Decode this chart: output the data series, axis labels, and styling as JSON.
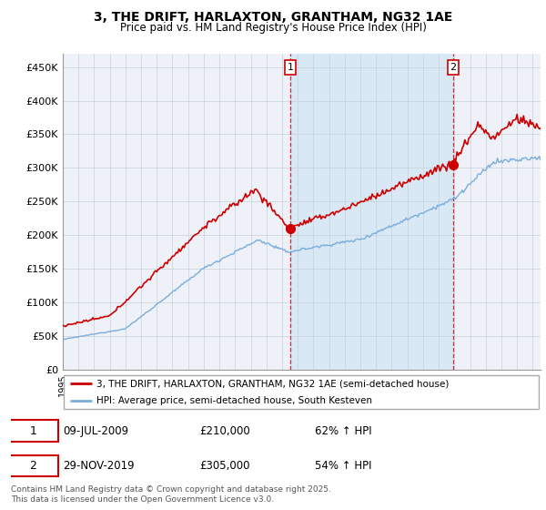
{
  "title": "3, THE DRIFT, HARLAXTON, GRANTHAM, NG32 1AE",
  "subtitle": "Price paid vs. HM Land Registry's House Price Index (HPI)",
  "ylabel_ticks": [
    "£0",
    "£50K",
    "£100K",
    "£150K",
    "£200K",
    "£250K",
    "£300K",
    "£350K",
    "£400K",
    "£450K"
  ],
  "ylabel_values": [
    0,
    50000,
    100000,
    150000,
    200000,
    250000,
    300000,
    350000,
    400000,
    450000
  ],
  "ylim": [
    0,
    470000
  ],
  "xlim_start": 1995.0,
  "xlim_end": 2025.5,
  "property_color": "#cc0000",
  "hpi_color": "#7aaddd",
  "shade_color": "#d8e8f5",
  "legend_property": "3, THE DRIFT, HARLAXTON, GRANTHAM, NG32 1AE (semi-detached house)",
  "legend_hpi": "HPI: Average price, semi-detached house, South Kesteven",
  "sale1_x": 2009.52,
  "sale1_y": 210000,
  "sale1_label": "1",
  "sale2_x": 2019.92,
  "sale2_y": 305000,
  "sale2_label": "2",
  "annotation1_date": "09-JUL-2009",
  "annotation1_price": "£210,000",
  "annotation1_hpi": "62% ↑ HPI",
  "annotation2_date": "29-NOV-2019",
  "annotation2_price": "£305,000",
  "annotation2_hpi": "54% ↑ HPI",
  "footer": "Contains HM Land Registry data © Crown copyright and database right 2025.\nThis data is licensed under the Open Government Licence v3.0.",
  "background_color": "#ffffff",
  "grid_color": "#c8d0d8",
  "chart_bg": "#eef2f8"
}
